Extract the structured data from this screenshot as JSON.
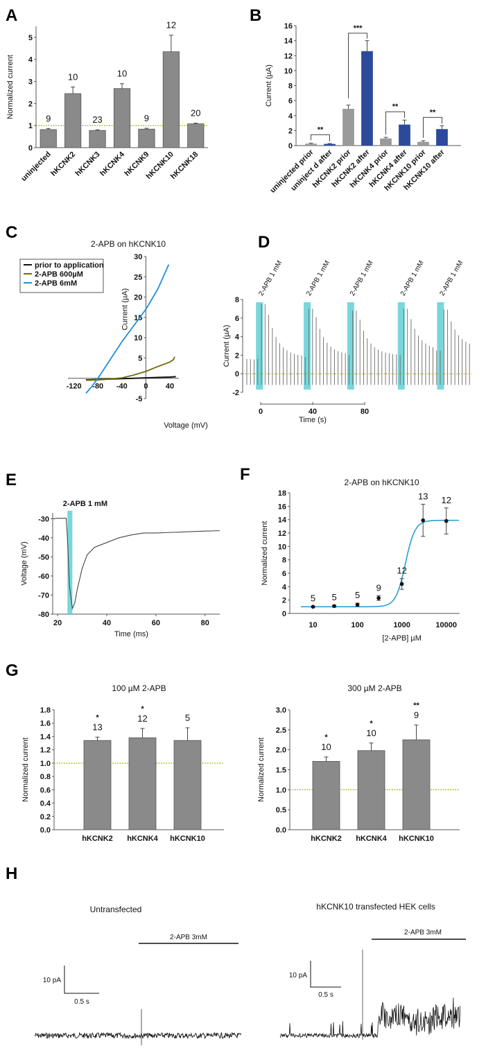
{
  "figure": {
    "panel_labels": [
      "A",
      "B",
      "C",
      "D",
      "E",
      "F",
      "G",
      "H"
    ]
  },
  "chart_data": [
    {
      "id": "A",
      "type": "bar",
      "title": "",
      "xlabel": "",
      "ylabel": "Normalized current",
      "ylim": [
        0,
        5.5
      ],
      "yticks": [
        "0",
        "1",
        "2",
        "3",
        "4",
        "5"
      ],
      "categories": [
        "uninjected",
        "hKCNK2",
        "hKCNK3",
        "hKCNK4",
        "hKCNK9",
        "hKCNK10",
        "hKCNK18"
      ],
      "values": [
        0.82,
        2.45,
        0.78,
        2.68,
        0.84,
        4.35,
        1.08
      ],
      "errors": [
        0.05,
        0.3,
        0.03,
        0.22,
        0.04,
        0.75,
        0.03
      ],
      "n_labels": [
        "9",
        "10",
        "23",
        "10",
        "9",
        "12",
        "20"
      ],
      "reference_line": 1,
      "colors": {
        "bar": "#8a8a8a",
        "reference": "#a5c21a"
      }
    },
    {
      "id": "B",
      "type": "bar",
      "title": "",
      "xlabel": "",
      "ylabel": "Current (µA)",
      "ylim": [
        0,
        16
      ],
      "yticks": [
        "0",
        "2",
        "4",
        "6",
        "8",
        "10",
        "12",
        "14",
        "16"
      ],
      "categories": [
        "uninjected prior",
        "uninject  d after",
        "hKCNK2 prior",
        "hKCNK2 after",
        "hKCNK4 prior",
        "hKCNK4 after",
        "hKCNK10 prior",
        "hKCNK10 after"
      ],
      "values": [
        0.25,
        0.22,
        4.9,
        12.6,
        0.95,
        2.8,
        0.5,
        2.2
      ],
      "errors": [
        0.08,
        0.06,
        0.5,
        1.4,
        0.15,
        0.6,
        0.15,
        0.45
      ],
      "bar_groups": [
        "prior",
        "after",
        "prior",
        "after",
        "prior",
        "after",
        "prior",
        "after"
      ],
      "significance": [
        {
          "pair": [
            0,
            1
          ],
          "label": "**"
        },
        {
          "pair": [
            2,
            3
          ],
          "label": "***"
        },
        {
          "pair": [
            4,
            5
          ],
          "label": "**"
        },
        {
          "pair": [
            6,
            7
          ],
          "label": "**"
        }
      ],
      "colors": {
        "prior": "#9a9a9a",
        "after": "#2b4a9b"
      }
    },
    {
      "id": "C",
      "type": "line",
      "title": "2-APB on hKCNK10",
      "xlabel": "Voltage (mV)",
      "ylabel": "Current (µA)",
      "xlim": [
        -130,
        55
      ],
      "ylim": [
        -5,
        30
      ],
      "xticks": [
        "-120",
        "-80",
        "-40",
        "0",
        "40"
      ],
      "yticks": [
        "-5",
        "5",
        "10",
        "15",
        "20",
        "25",
        "30"
      ],
      "legend": "top-left",
      "series": [
        {
          "name": "prior to application",
          "color": "#111111",
          "x": [
            -100,
            -80,
            -60,
            -40,
            -20,
            0,
            20,
            40,
            50
          ],
          "y": [
            -0.4,
            -0.3,
            -0.2,
            -0.1,
            0,
            0.1,
            0.2,
            0.3,
            0.4
          ]
        },
        {
          "name": "2-APB 600µM",
          "color": "#6f6a0c",
          "x": [
            -100,
            -80,
            -60,
            -40,
            -20,
            0,
            20,
            40,
            46,
            48
          ],
          "y": [
            -0.5,
            -0.4,
            -0.2,
            0.1,
            0.8,
            1.7,
            2.9,
            4.0,
            4.6,
            5.3
          ]
        },
        {
          "name": "2-APB 6mM",
          "color": "#1f8ed8",
          "x": [
            -100,
            -90,
            -80,
            -60,
            -40,
            -20,
            0,
            20,
            38
          ],
          "y": [
            -3.7,
            -2,
            0,
            4.5,
            9,
            13,
            17,
            22,
            28
          ]
        }
      ]
    },
    {
      "id": "D",
      "type": "line",
      "title": "",
      "xlabel": "Time (s)",
      "ylabel": "Current (µA)",
      "ylim": [
        -2,
        8
      ],
      "yticks": [
        "-2",
        "0",
        "2",
        "4",
        "6",
        "8"
      ],
      "xticks": [
        "0",
        "40",
        "80"
      ],
      "applications": [
        "2-APB 1 mM",
        "2-APB 1 mM",
        "2-APB 1 mM",
        "2-APB 1 mM",
        "2-APB 1 mM"
      ],
      "application_times_s": [
        9,
        43,
        74,
        110,
        138
      ],
      "peak_currents": [
        7.5,
        7.0,
        6.8,
        7.0,
        6.9
      ],
      "pre_currents": [
        1.6,
        1.8,
        2.0,
        2.0,
        2.5
      ],
      "steady_state_after": [
        1.8,
        2.0,
        2.0,
        2.5,
        2.8
      ],
      "baseline_negative": -1.2,
      "reference_line": 0,
      "colors": {
        "trace": "#555555",
        "application": "#5fd0d6",
        "reference": "#b8a020"
      }
    },
    {
      "id": "E",
      "type": "line",
      "title": "2-APB 1 mM",
      "xlabel": "Time (ms)",
      "ylabel": "Voltage (mV)",
      "xlim": [
        18,
        86
      ],
      "ylim": [
        -80,
        -27
      ],
      "xticks": [
        "20",
        "40",
        "60",
        "80"
      ],
      "yticks": [
        "-30",
        "-40",
        "-50",
        "-60",
        "-70",
        "-80"
      ],
      "application_window_ms": [
        24,
        26
      ],
      "series": [
        {
          "name": "membrane voltage",
          "x": [
            18,
            20,
            23.5,
            24,
            24.8,
            25.5,
            26,
            27,
            28,
            30,
            32,
            35,
            40,
            45,
            50,
            55,
            60,
            70,
            80,
            86
          ],
          "y": [
            -30,
            -29.8,
            -29.8,
            -40,
            -65,
            -72,
            -77,
            -74,
            -67,
            -56,
            -49,
            -45,
            -42.5,
            -40,
            -38.5,
            -37.5,
            -37.5,
            -37,
            -36.5,
            -36.3
          ]
        }
      ],
      "colors": {
        "trace": "#444444",
        "application": "#5fd0d6"
      }
    },
    {
      "id": "F",
      "type": "scatter",
      "title": "2-APB on hKCNK10",
      "xlabel": "[2-APB] µM",
      "ylabel": "Normalized current",
      "xscale": "log",
      "xlim": [
        3,
        20000
      ],
      "ylim": [
        0,
        18
      ],
      "xticks": [
        "10",
        "100",
        "1000",
        "10000"
      ],
      "yticks": [
        "0",
        "2",
        "4",
        "6",
        "8",
        "10",
        "12",
        "14",
        "16",
        "18"
      ],
      "x": [
        10,
        30,
        100,
        300,
        1000,
        3000,
        10000
      ],
      "y": [
        1.0,
        1.1,
        1.3,
        2.3,
        4.4,
        13.9,
        13.8
      ],
      "errors": [
        0.1,
        0.15,
        0.25,
        0.35,
        0.8,
        2.4,
        1.95
      ],
      "n_labels": [
        "5",
        "5",
        "5",
        "9",
        "12",
        "13",
        "12"
      ],
      "fit": {
        "bottom": 1.0,
        "top": 13.9,
        "ec50": 1200,
        "hill": 4
      },
      "colors": {
        "fit": "#2a9fd0",
        "points": "#111111"
      }
    },
    {
      "id": "G1",
      "type": "bar",
      "title": "100 µM 2-APB",
      "xlabel": "",
      "ylabel": "Normalized current",
      "ylim": [
        0,
        1.8
      ],
      "yticks": [
        "0.0",
        "0.2",
        "0.4",
        "0.6",
        "0.8",
        "1.0",
        "1.2",
        "1.4",
        "1.6",
        "1.8"
      ],
      "categories": [
        "hKCNK2",
        "hKCNK4",
        "hKCNK10"
      ],
      "values": [
        1.34,
        1.38,
        1.34
      ],
      "errors": [
        0.05,
        0.14,
        0.19
      ],
      "n_labels": [
        "13",
        "12",
        "5"
      ],
      "significance": [
        "*",
        "*",
        ""
      ],
      "reference_line": 1.0
    },
    {
      "id": "G2",
      "type": "bar",
      "title": "300 µM 2-APB",
      "xlabel": "",
      "ylabel": "Normalized current",
      "ylim": [
        0,
        3.0
      ],
      "yticks": [
        "0.0",
        "0.5",
        "1.0",
        "1.5",
        "2.0",
        "2.5",
        "3.0"
      ],
      "categories": [
        "hKCNK2",
        "hKCNK4",
        "hKCNK10"
      ],
      "values": [
        1.71,
        1.98,
        2.25
      ],
      "errors": [
        0.11,
        0.19,
        0.37
      ],
      "n_labels": [
        "10",
        "10",
        "9"
      ],
      "significance": [
        "*",
        "*",
        "**"
      ],
      "reference_line": 1.0
    },
    {
      "id": "H1",
      "type": "line",
      "title": "Untransfected",
      "application_label": "2-APB 3mM",
      "scale_bar": {
        "y_label": "10 pA",
        "x_label": "0.5 s"
      },
      "trace_description": "flat noisy baseline; brief artifact at application onset"
    },
    {
      "id": "H2",
      "type": "line",
      "title": "hKCNK10 transfected HEK cells",
      "application_label": "2-APB 3mM",
      "scale_bar": {
        "y_label": "10 pA",
        "x_label": "0.5 s"
      },
      "trace_description": "baseline with openings; strong increase in channel activity after 2-APB"
    }
  ]
}
